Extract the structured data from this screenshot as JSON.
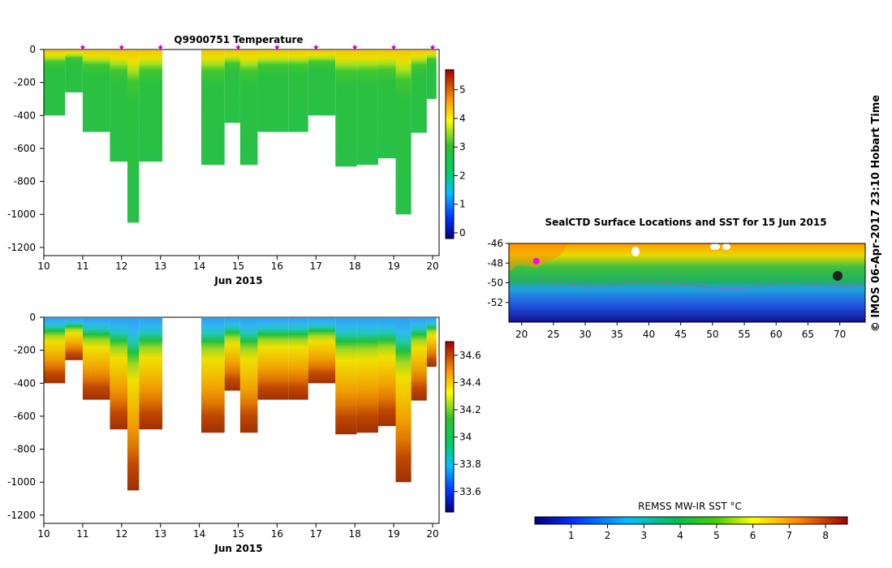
{
  "copyright": "© IMOS 06-Apr-2017 23:10 Hobart Time",
  "chart_data": [
    {
      "type": "heatmap",
      "id": "temperature",
      "title": "Q9900751  Temperature",
      "xlabel": "Jun 2015",
      "xlim": [
        10,
        20
      ],
      "xticks": [
        "10",
        "11",
        "12",
        "13",
        "14",
        "15",
        "16",
        "17",
        "18",
        "19",
        "20"
      ],
      "ylim": [
        -1250,
        0
      ],
      "yticks": [
        "0",
        "-200",
        "-400",
        "-600",
        "-800",
        "-1000",
        "-1200"
      ],
      "colorbar": {
        "ticks": [
          "0",
          "1",
          "2",
          "3",
          "4",
          "5"
        ],
        "range": [
          -0.2,
          5.7
        ]
      },
      "profile_markers": [
        11,
        12,
        13,
        15,
        16,
        17,
        18,
        19,
        20
      ],
      "profiles": [
        {
          "t0": 10.0,
          "t1": 10.55,
          "depth": 400
        },
        {
          "t0": 10.55,
          "t1": 11.0,
          "depth": 260
        },
        {
          "t0": 11.0,
          "t1": 11.7,
          "depth": 500
        },
        {
          "t0": 11.7,
          "t1": 12.15,
          "depth": 680
        },
        {
          "t0": 12.15,
          "t1": 12.45,
          "depth": 1050
        },
        {
          "t0": 12.45,
          "t1": 13.05,
          "depth": 680
        },
        {
          "t0": 14.05,
          "t1": 14.65,
          "depth": 700
        },
        {
          "t0": 14.65,
          "t1": 15.05,
          "depth": 445
        },
        {
          "t0": 15.05,
          "t1": 15.5,
          "depth": 700
        },
        {
          "t0": 15.5,
          "t1": 16.3,
          "depth": 500
        },
        {
          "t0": 16.3,
          "t1": 16.8,
          "depth": 500
        },
        {
          "t0": 16.8,
          "t1": 17.5,
          "depth": 400
        },
        {
          "t0": 17.5,
          "t1": 18.05,
          "depth": 710
        },
        {
          "t0": 18.05,
          "t1": 18.6,
          "depth": 700
        },
        {
          "t0": 18.6,
          "t1": 19.05,
          "depth": 660
        },
        {
          "t0": 19.05,
          "t1": 19.45,
          "depth": 1000
        },
        {
          "t0": 19.45,
          "t1": 19.85,
          "depth": 505
        },
        {
          "t0": 19.85,
          "t1": 20.1,
          "depth": 300
        }
      ]
    },
    {
      "type": "heatmap",
      "id": "salinity",
      "title": "",
      "xlabel": "Jun 2015",
      "xlim": [
        10,
        20
      ],
      "xticks": [
        "10",
        "11",
        "12",
        "13",
        "14",
        "15",
        "16",
        "17",
        "18",
        "19",
        "20"
      ],
      "ylim": [
        -1250,
        0
      ],
      "yticks": [
        "0",
        "-200",
        "-400",
        "-600",
        "-800",
        "-1000",
        "-1200"
      ],
      "colorbar": {
        "ticks": [
          "33.6",
          "33.8",
          "34",
          "34.2",
          "34.4",
          "34.6"
        ],
        "range": [
          33.45,
          34.7
        ]
      }
    },
    {
      "type": "heatmap",
      "id": "sst_map",
      "title": "SealCTD Surface Locations and SST for 15 Jun 2015",
      "xlim": [
        18,
        74
      ],
      "xticks": [
        "20",
        "25",
        "30",
        "35",
        "40",
        "45",
        "50",
        "55",
        "60",
        "65",
        "70"
      ],
      "ylim": [
        -54,
        -46
      ],
      "yticks": [
        "-46",
        "-48",
        "-50",
        "-52"
      ],
      "seal_location": {
        "lon": 22.3,
        "lat": -47.8
      }
    },
    {
      "type": "heatmap",
      "id": "sst_colorbar",
      "xlabel": "REMSS MW-IR SST °C",
      "range": [
        0,
        8.6
      ],
      "ticks": [
        "1",
        "2",
        "3",
        "4",
        "5",
        "6",
        "7",
        "8"
      ]
    }
  ]
}
